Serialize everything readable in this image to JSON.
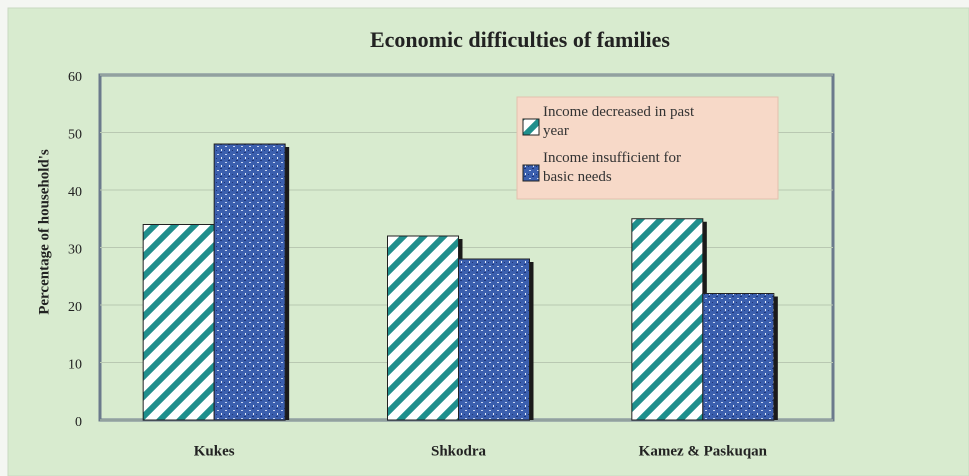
{
  "chart_data": {
    "type": "bar",
    "title": "Economic difficulties of families",
    "y_label": "Percentage of household's",
    "categories": [
      "Kukes",
      "Shkodra",
      "Kamez & Paskuqan"
    ],
    "series": [
      {
        "name": "Income decreased in past year",
        "color": "#1f8f8c",
        "values": [
          34,
          32,
          35
        ]
      },
      {
        "name": "Income insufficient for basic needs",
        "color": "#3b5fae",
        "values": [
          48,
          28,
          22
        ]
      }
    ],
    "ylim": [
      0,
      60
    ],
    "yticks": [
      0,
      10,
      20,
      30,
      40,
      50,
      60
    ],
    "grid": true,
    "legend": "upper right"
  }
}
